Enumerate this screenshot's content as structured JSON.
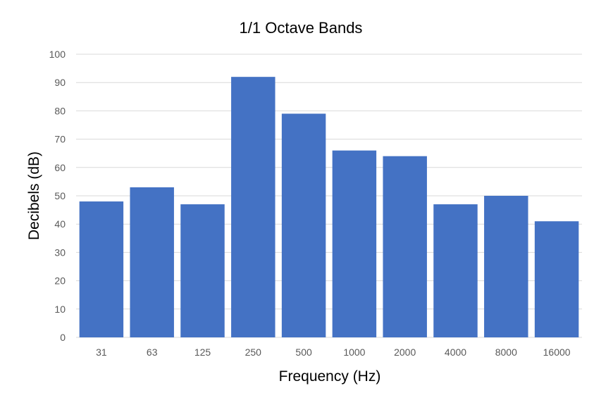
{
  "chart_data": {
    "type": "bar",
    "title": "1/1 Octave Bands",
    "xlabel": "Frequency (Hz)",
    "ylabel": "Decibels (dB)",
    "categories": [
      "31",
      "63",
      "125",
      "250",
      "500",
      "1000",
      "2000",
      "4000",
      "8000",
      "16000"
    ],
    "values": [
      48,
      53,
      47,
      92,
      79,
      66,
      64,
      47,
      50,
      41
    ],
    "ylim": [
      0,
      100
    ],
    "yticks": [
      0,
      10,
      20,
      30,
      40,
      50,
      60,
      70,
      80,
      90,
      100
    ],
    "grid": true,
    "legend": "none",
    "bar_color": "#4472C4"
  }
}
